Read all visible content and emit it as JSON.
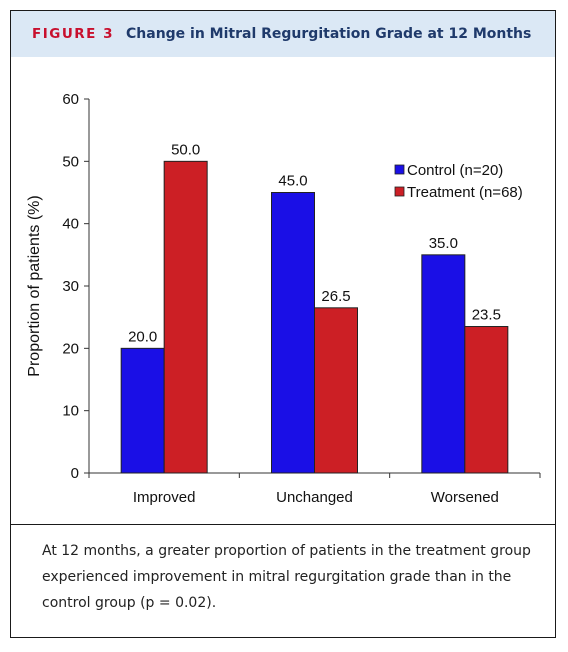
{
  "figure": {
    "label": "FIGURE 3",
    "title": "Change in Mitral Regurgitation Grade at 12 Months",
    "caption": "At 12 months, a greater proportion of patients in the treatment group experienced improvement in mitral regurgitation grade than in the control group (p = 0.02)."
  },
  "colors": {
    "control": "#1a0fe6",
    "treatment": "#cc1f25",
    "header_bg": "#dbe8f5",
    "label": "#c8102e",
    "title": "#1f3a6b"
  },
  "chart_data": {
    "type": "bar",
    "categories": [
      "Improved",
      "Unchanged",
      "Worsened"
    ],
    "series": [
      {
        "name": "Control (n=20)",
        "values": [
          20.0,
          45.0,
          35.0
        ]
      },
      {
        "name": "Treatment (n=68)",
        "values": [
          50.0,
          26.5,
          23.5
        ]
      }
    ],
    "data_labels": [
      [
        "20.0",
        "45.0",
        "35.0"
      ],
      [
        "50.0",
        "26.5",
        "23.5"
      ]
    ],
    "ylabel": "Proportion of patients (%)",
    "ylim": [
      0,
      60
    ],
    "yticks": [
      0,
      10,
      20,
      30,
      40,
      50,
      60
    ],
    "grid": false,
    "legend_position": "top-right"
  }
}
